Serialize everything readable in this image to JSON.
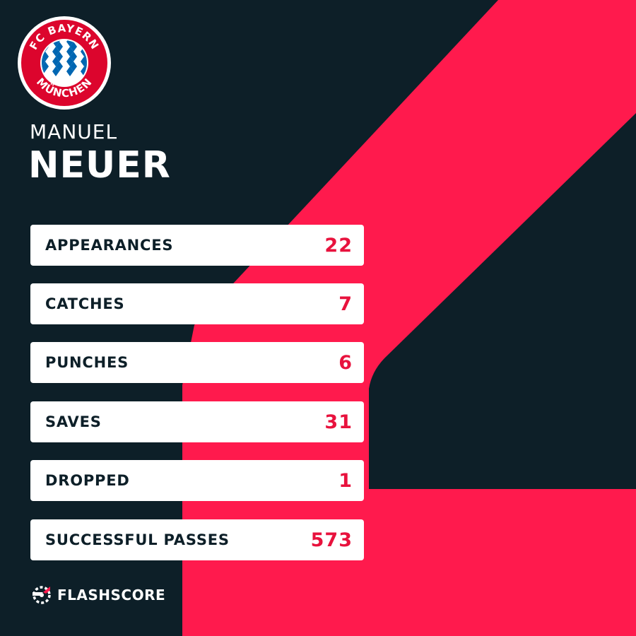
{
  "colors": {
    "background": "#0d1f28",
    "accent": "#ff1a4d",
    "card": "#ffffff",
    "label": "#0d1f28",
    "value": "#e8123d"
  },
  "crest": {
    "icon": "fc-bayern-muenchen-crest",
    "top_text": "FC BAYERN",
    "bottom_text": "MÜNCHEN"
  },
  "player": {
    "first_name": "MANUEL",
    "last_name": "NEUER"
  },
  "stats": [
    {
      "label": "APPEARANCES",
      "value": "22"
    },
    {
      "label": "CATCHES",
      "value": "7"
    },
    {
      "label": "PUNCHES",
      "value": "6"
    },
    {
      "label": "SAVES",
      "value": "31"
    },
    {
      "label": "DROPPED",
      "value": "1"
    },
    {
      "label": "SUCCESSFUL PASSES",
      "value": "573"
    }
  ],
  "brand": {
    "icon": "flashscore-logo-icon",
    "name": "FLASHSCORE"
  }
}
